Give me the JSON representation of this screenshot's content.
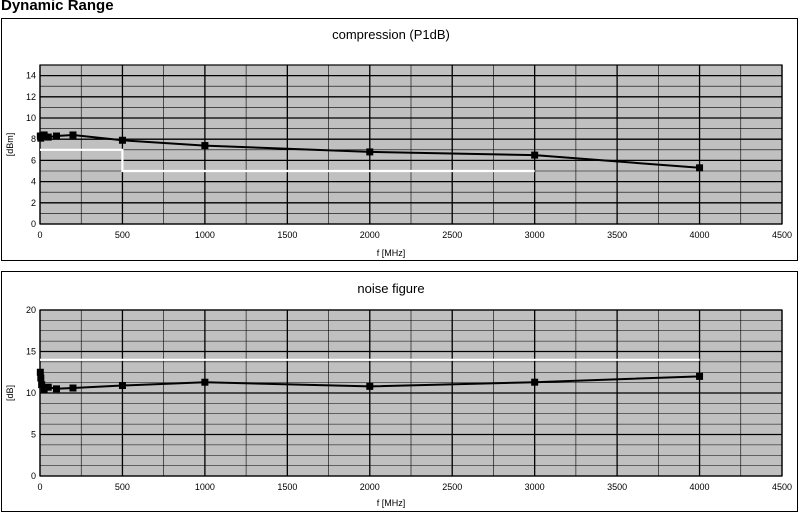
{
  "page": {
    "title": "Dynamic Range"
  },
  "chart_data": [
    {
      "type": "line",
      "title": "compression (P1dB)",
      "xlabel": "f [MHz]",
      "ylabel": "[dBm]",
      "xlim": [
        0,
        4500
      ],
      "ylim": [
        0,
        15
      ],
      "x_ticks": [
        0,
        500,
        1000,
        1500,
        2000,
        2500,
        3000,
        3500,
        4000,
        4500
      ],
      "y_ticks": [
        0,
        2,
        4,
        6,
        8,
        10,
        12,
        14
      ],
      "x_minor_step": 250,
      "y_minor_step": 1,
      "grid": true,
      "plot_background": "#c0c0c0",
      "series": [
        {
          "color": "#000000",
          "marker": "square",
          "x": [
            2,
            5,
            10,
            25,
            50,
            100,
            200,
            500,
            1000,
            2000,
            3000,
            4000
          ],
          "y": [
            8.3,
            8.1,
            8.3,
            8.4,
            8.2,
            8.3,
            8.4,
            7.9,
            7.4,
            6.8,
            6.5,
            5.3
          ]
        },
        {
          "color": "#ffffff",
          "marker": "none",
          "x": [
            0,
            500,
            500,
            3000
          ],
          "y": [
            7,
            7,
            5,
            5
          ]
        }
      ]
    },
    {
      "type": "line",
      "title": "noise figure",
      "xlabel": "f [MHz]",
      "ylabel": "[dB]",
      "xlim": [
        0,
        4500
      ],
      "ylim": [
        0,
        20
      ],
      "x_ticks": [
        0,
        500,
        1000,
        1500,
        2000,
        2500,
        3000,
        3500,
        4000,
        4500
      ],
      "y_ticks": [
        0,
        5,
        10,
        15,
        20
      ],
      "x_minor_step": 250,
      "y_minor_step": 1.25,
      "grid": true,
      "plot_background": "#c0c0c0",
      "series": [
        {
          "color": "#000000",
          "marker": "square",
          "x": [
            2,
            5,
            10,
            25,
            50,
            100,
            200,
            500,
            1000,
            2000,
            3000,
            4000
          ],
          "y": [
            12.5,
            11.8,
            11.0,
            10.4,
            10.7,
            10.5,
            10.6,
            10.9,
            11.3,
            10.8,
            11.3,
            12.0
          ]
        },
        {
          "color": "#ffffff",
          "marker": "none",
          "x": [
            0,
            4000
          ],
          "y": [
            14,
            14
          ]
        }
      ]
    }
  ]
}
